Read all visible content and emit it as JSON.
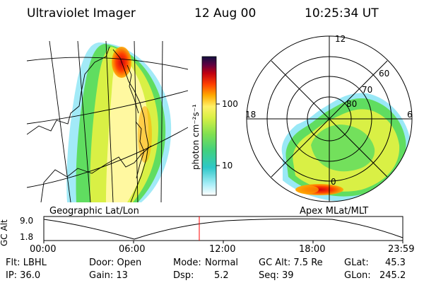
{
  "header": {
    "title": "Ultraviolet Imager",
    "date": "12 Aug 00",
    "time": "10:25:34 UT"
  },
  "left_panel": {
    "caption": "Geographic Lat/Lon"
  },
  "right_panel": {
    "caption": "Apex MLat/MLT",
    "mlt_labels": [
      "12",
      "18",
      "6",
      "0"
    ],
    "mlat_labels": [
      "60",
      "70",
      "80"
    ]
  },
  "colorbar": {
    "label": "photon cm⁻²s⁻¹",
    "ticks": [
      "100",
      "10"
    ],
    "colors": [
      "#ffffff",
      "#55d8f0",
      "#2ec8a8",
      "#60dd60",
      "#d9f045",
      "#fff066",
      "#ffaa00",
      "#ff4000",
      "#c00010",
      "#600040",
      "#101040"
    ]
  },
  "altitude_plot": {
    "ylabel": "GC Alt",
    "yticks": [
      "9.0",
      "1.8"
    ],
    "xticks": [
      "00:00",
      "06:00",
      "12:00",
      "18:00",
      "23:59"
    ],
    "current_time_fraction": 0.434
  },
  "footer": {
    "flt": "Flt: LBHL",
    "ip": "IP: 36.0",
    "door": "Door: Open",
    "gain": "Gain: 13",
    "mode_label": "Mode:",
    "mode_value": "Normal",
    "dsp_label": "Dsp:",
    "dsp_value": "5.2",
    "gc_alt": "GC Alt: 7.5 Re",
    "seq": "Seq: 39",
    "glat_label": "GLat:",
    "glat_value": "45.3",
    "glon_label": "GLon:",
    "glon_value": "245.2"
  }
}
